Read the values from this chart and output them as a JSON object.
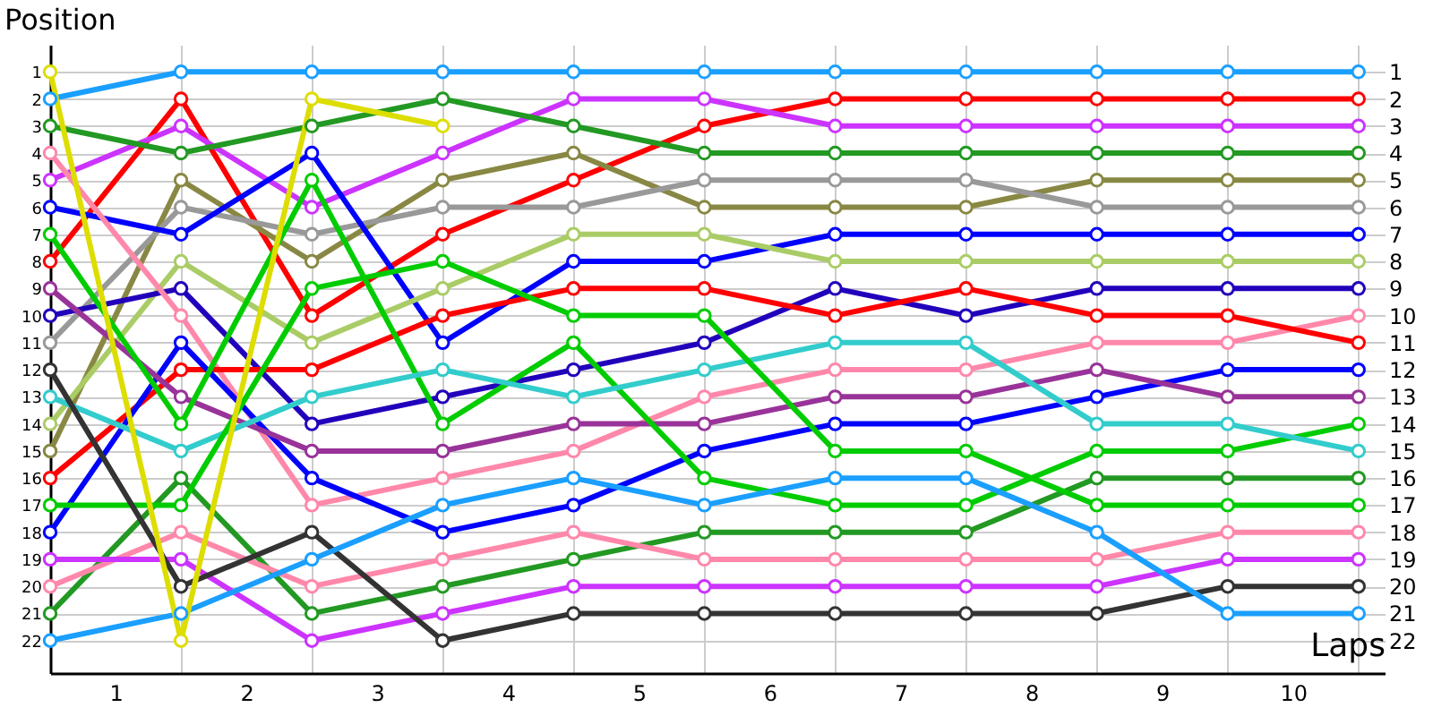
{
  "chart_data": {
    "type": "line",
    "xlabel": "Laps",
    "ylabel": "Position",
    "x": [
      0,
      1,
      2,
      3,
      4,
      5,
      6,
      7,
      8,
      9,
      10
    ],
    "xlim": [
      0,
      10.2
    ],
    "xticks": [
      {
        "value": 0,
        "label": null
      },
      {
        "value": 0.5,
        "label": "1"
      },
      {
        "value": 1,
        "label": null
      },
      {
        "value": 1.5,
        "label": "2"
      },
      {
        "value": 2,
        "label": null
      },
      {
        "value": 2.5,
        "label": "3"
      },
      {
        "value": 3,
        "label": null
      },
      {
        "value": 3.5,
        "label": "4"
      },
      {
        "value": 4,
        "label": null
      },
      {
        "value": 4.5,
        "label": "5"
      },
      {
        "value": 5,
        "label": null
      },
      {
        "value": 5.5,
        "label": "6"
      },
      {
        "value": 6,
        "label": null
      },
      {
        "value": 6.5,
        "label": "7"
      },
      {
        "value": 7,
        "label": null
      },
      {
        "value": 7.5,
        "label": "8"
      },
      {
        "value": 8,
        "label": null
      },
      {
        "value": 8.5,
        "label": "9"
      },
      {
        "value": 9,
        "label": null
      },
      {
        "value": 9.5,
        "label": "10"
      },
      {
        "value": 10,
        "label": null
      }
    ],
    "ylim": [
      23.2,
      0
    ],
    "yticks": [
      1,
      2,
      3,
      4,
      5,
      6,
      7,
      8,
      9,
      10,
      11,
      12,
      13,
      14,
      15,
      16,
      17,
      18,
      19,
      20,
      21,
      22
    ],
    "y2lim": [
      23.2,
      0
    ],
    "y2ticks": [
      1,
      2,
      3,
      4,
      5,
      6,
      7,
      8,
      9,
      10,
      11,
      12,
      13,
      14,
      15,
      16,
      17,
      18,
      19,
      20,
      21,
      22
    ],
    "grid": true,
    "marker": "circle",
    "line_style": "solid",
    "series": [
      {
        "color": "#1a9fff",
        "values": [
          2,
          1,
          1,
          1,
          1,
          1,
          1,
          1,
          1,
          1,
          1
        ]
      },
      {
        "color": "#ff0000",
        "values": [
          8,
          2,
          10,
          7,
          5,
          3,
          2,
          2,
          2,
          2,
          2
        ]
      },
      {
        "color": "#cc33ff",
        "values": [
          5,
          3,
          6,
          4,
          2,
          2,
          3,
          3,
          3,
          3,
          3
        ]
      },
      {
        "color": "#229922",
        "values": [
          3,
          4,
          3,
          2,
          3,
          4,
          4,
          4,
          4,
          4,
          4
        ]
      },
      {
        "color": "#888844",
        "values": [
          15,
          5,
          8,
          5,
          4,
          6,
          6,
          6,
          5,
          5,
          5
        ]
      },
      {
        "color": "#999999",
        "values": [
          11,
          6,
          7,
          6,
          6,
          5,
          5,
          5,
          6,
          6,
          6
        ]
      },
      {
        "color": "#0000ff",
        "values": [
          6,
          7,
          4,
          11,
          8,
          8,
          7,
          7,
          7,
          7,
          7
        ]
      },
      {
        "color": "#aacc66",
        "values": [
          14,
          8,
          11,
          9,
          7,
          7,
          8,
          8,
          8,
          8,
          8
        ]
      },
      {
        "color": "#2200bb",
        "values": [
          10,
          9,
          14,
          13,
          12,
          11,
          9,
          10,
          9,
          9,
          9
        ]
      },
      {
        "color": "#ff88aa",
        "values": [
          4,
          10,
          17,
          16,
          15,
          13,
          12,
          12,
          11,
          11,
          10
        ]
      },
      {
        "color": "#ff0000",
        "values": [
          16,
          12,
          12,
          10,
          9,
          9,
          10,
          9,
          10,
          10,
          11
        ]
      },
      {
        "color": "#0000ff",
        "values": [
          18,
          11,
          16,
          18,
          17,
          15,
          14,
          14,
          13,
          12,
          12
        ]
      },
      {
        "color": "#993399",
        "values": [
          9,
          13,
          15,
          15,
          14,
          14,
          13,
          13,
          12,
          13,
          13
        ]
      },
      {
        "color": "#00cc00",
        "values": [
          7,
          14,
          5,
          14,
          11,
          16,
          17,
          17,
          15,
          15,
          14
        ]
      },
      {
        "color": "#33cccc",
        "values": [
          13,
          15,
          13,
          12,
          13,
          12,
          11,
          11,
          14,
          14,
          15
        ]
      },
      {
        "color": "#229922",
        "values": [
          21,
          16,
          21,
          20,
          19,
          18,
          18,
          18,
          16,
          16,
          16
        ]
      },
      {
        "color": "#00cc00",
        "values": [
          17,
          17,
          9,
          8,
          10,
          10,
          15,
          15,
          17,
          17,
          17
        ]
      },
      {
        "color": "#ff88aa",
        "values": [
          20,
          18,
          20,
          19,
          18,
          19,
          19,
          19,
          19,
          18,
          18
        ]
      },
      {
        "color": "#cc33ff",
        "values": [
          19,
          19,
          22,
          21,
          20,
          20,
          20,
          20,
          20,
          19,
          19
        ]
      },
      {
        "color": "#333333",
        "values": [
          12,
          20,
          18,
          22,
          21,
          21,
          21,
          21,
          21,
          20,
          20
        ]
      },
      {
        "color": "#1a9fff",
        "values": [
          22,
          21,
          19,
          17,
          16,
          17,
          16,
          16,
          18,
          21,
          21
        ]
      },
      {
        "color": "#dddd00",
        "values": [
          1,
          22,
          2,
          3,
          null,
          null,
          null,
          null,
          null,
          null,
          null
        ]
      }
    ]
  }
}
